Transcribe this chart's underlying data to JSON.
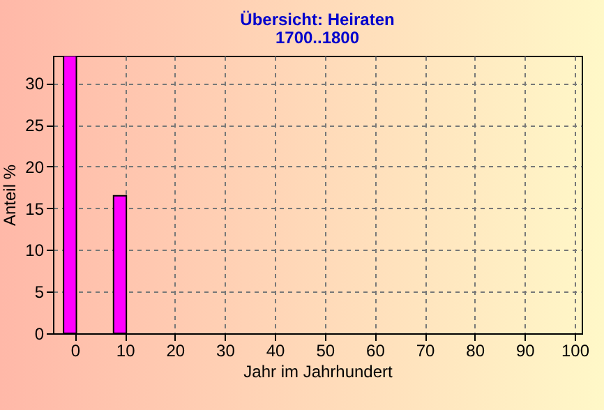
{
  "chart_data": {
    "type": "bar",
    "title": "Übersicht: Heiraten",
    "subtitle": "1700..1800",
    "xlabel": "Jahr im Jahrhundert",
    "ylabel": "Anteil %",
    "x": [
      -1,
      9
    ],
    "values": [
      33.3,
      16.5
    ],
    "color": "#ff00ff",
    "xlim": [
      -3,
      100
    ],
    "xticks": [
      0,
      10,
      20,
      30,
      40,
      50,
      60,
      70,
      80,
      90,
      100
    ],
    "ylim": [
      0,
      33.3
    ],
    "yticks": [
      0,
      5,
      10,
      15,
      20,
      25,
      30
    ],
    "grid": true
  }
}
